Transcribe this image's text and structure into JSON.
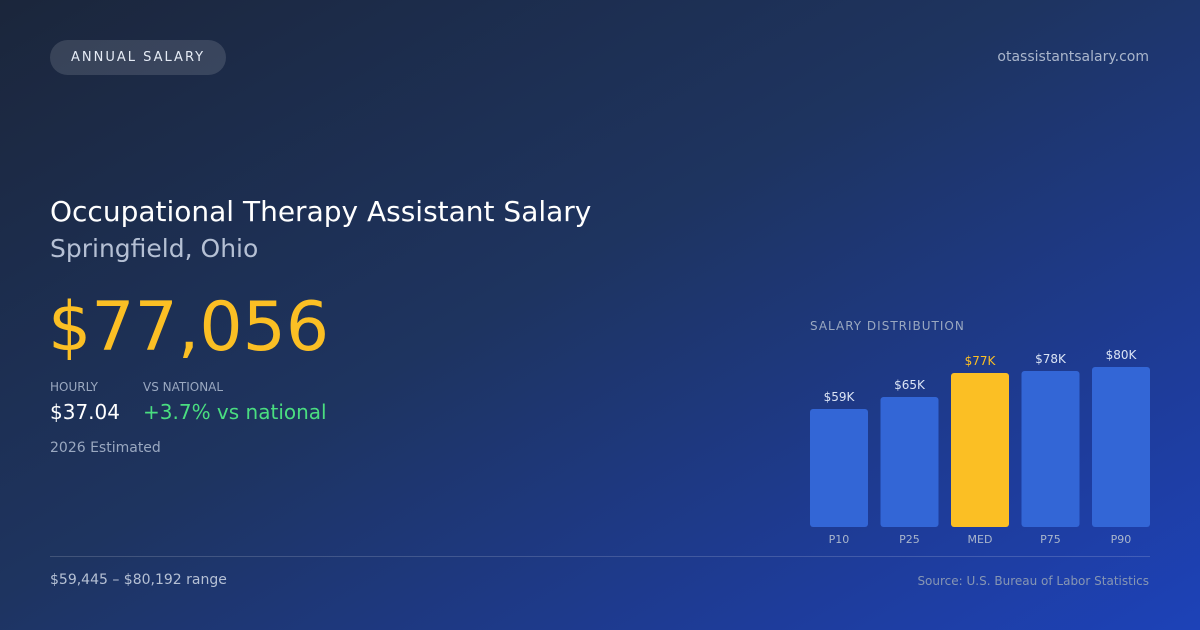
{
  "badge": "ANNUAL SALARY",
  "site": "otassistantsalary.com",
  "title": "Occupational Therapy Assistant Salary",
  "subtitle": "Springfield, Ohio",
  "salary": "$77,056",
  "stats": [
    {
      "label": "HOURLY",
      "value": "$37.04"
    },
    {
      "label": "VS NATIONAL",
      "value": "+3.7% vs national"
    }
  ],
  "note": "2026 Estimated",
  "range": "$59,445 – $80,192 range",
  "source": "Source: U.S. Bureau of Labor Statistics",
  "chart_data": {
    "type": "bar",
    "title": "SALARY DISTRIBUTION",
    "categories": [
      "P10",
      "P25",
      "MED",
      "P75",
      "P90"
    ],
    "values": [
      59,
      65,
      77,
      78,
      80
    ],
    "value_labels": [
      "$59K",
      "$65K",
      "$77K",
      "$78K",
      "$80K"
    ],
    "color": "#3366d6",
    "colors": [
      "#3366d6",
      "#3366d6",
      "#fbbf24",
      "#3366d6",
      "#3366d6"
    ]
  }
}
